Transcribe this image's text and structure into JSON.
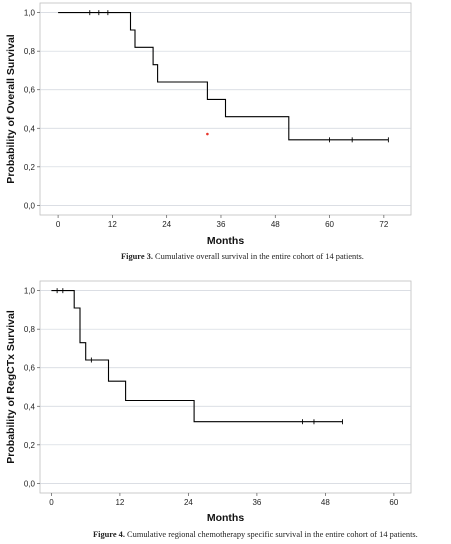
{
  "chart_data": [
    {
      "type": "line",
      "subtype": "kaplan-meier",
      "title": "",
      "xlabel": "Months",
      "ylabel": "Probability of Overall Survival",
      "xlim": [
        -4,
        78
      ],
      "ylim": [
        -0.05,
        1.05
      ],
      "xticks": [
        0,
        12,
        24,
        36,
        48,
        60,
        72
      ],
      "yticks": [
        0.0,
        0.2,
        0.4,
        0.6,
        0.8,
        1.0
      ],
      "tick_labels_y": [
        "0,0",
        "0,2",
        "0,4",
        "0,6",
        "0,8",
        "1,0"
      ],
      "grid": "horizontal",
      "series": [
        {
          "step_points": [
            [
              0,
              1.0
            ],
            [
              16,
              1.0
            ],
            [
              16,
              0.91
            ],
            [
              17,
              0.91
            ],
            [
              17,
              0.82
            ],
            [
              21,
              0.82
            ],
            [
              21,
              0.73
            ],
            [
              22,
              0.73
            ],
            [
              22,
              0.64
            ],
            [
              33,
              0.64
            ],
            [
              33,
              0.55
            ],
            [
              37,
              0.55
            ],
            [
              37,
              0.46
            ],
            [
              51,
              0.46
            ],
            [
              51,
              0.34
            ],
            [
              73,
              0.34
            ]
          ],
          "censored": [
            [
              7,
              1.0
            ],
            [
              9,
              1.0
            ],
            [
              11,
              1.0
            ],
            [
              60,
              0.34
            ],
            [
              65,
              0.34
            ],
            [
              73,
              0.34
            ]
          ]
        }
      ],
      "annotations": [
        {
          "marker": "red-dot",
          "x": 33,
          "y": 0.37
        }
      ]
    },
    {
      "type": "line",
      "subtype": "kaplan-meier",
      "title": "",
      "xlabel": "Months",
      "ylabel": "Probability of RegCTx Survival",
      "xlim": [
        -2,
        63
      ],
      "ylim": [
        -0.05,
        1.05
      ],
      "xticks": [
        0,
        12,
        24,
        36,
        48,
        60
      ],
      "yticks": [
        0.0,
        0.2,
        0.4,
        0.6,
        0.8,
        1.0
      ],
      "tick_labels_y": [
        "0,0",
        "0,2",
        "0,4",
        "0,6",
        "0,8",
        "1,0"
      ],
      "grid": "horizontal",
      "series": [
        {
          "step_points": [
            [
              0,
              1.0
            ],
            [
              4,
              1.0
            ],
            [
              4,
              0.91
            ],
            [
              5,
              0.91
            ],
            [
              5,
              0.73
            ],
            [
              6,
              0.73
            ],
            [
              6,
              0.64
            ],
            [
              10,
              0.64
            ],
            [
              10,
              0.53
            ],
            [
              13,
              0.53
            ],
            [
              13,
              0.43
            ],
            [
              25,
              0.43
            ],
            [
              25,
              0.32
            ],
            [
              51,
              0.32
            ]
          ],
          "censored": [
            [
              1,
              1.0
            ],
            [
              2,
              1.0
            ],
            [
              7,
              0.64
            ],
            [
              44,
              0.32
            ],
            [
              46,
              0.32
            ],
            [
              51,
              0.32
            ]
          ]
        }
      ]
    }
  ],
  "figure3": {
    "label": "Figure 3.",
    "text": "Cumulative overall survival in the entire cohort of 14 patients."
  },
  "figure4": {
    "label": "Figure 4.",
    "text": "Cumulative regional chemotherapy specific survival in the entire cohort of 14 patients."
  },
  "style": {
    "line_color": "#000000",
    "grid_color": "#cfd4dc",
    "frame_color": "#bfbfbf",
    "annotation_color": "#e8352b"
  }
}
